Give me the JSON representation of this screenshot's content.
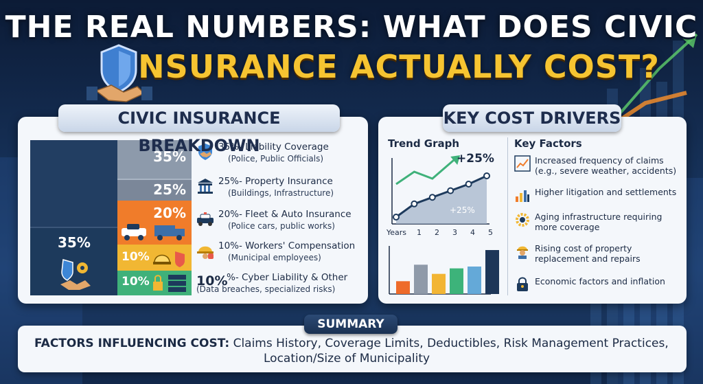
{
  "title": {
    "line1": "THE REAL NUMBERS: WHAT DOES CIVIC",
    "line2": "INSURANCE ACTUALLY COST?"
  },
  "breakdown": {
    "heading": "CIVIC INSURANCE BREAKDOWN",
    "big_pct": "35%",
    "cells": [
      {
        "pct": "35%",
        "color": "#8d9aab"
      },
      {
        "pct": "25%",
        "color": "#7b8799"
      },
      {
        "pct": "20%",
        "color": "#f07c2a"
      },
      {
        "pct": "10%",
        "color": "#f1b733"
      },
      {
        "pct": "10%",
        "color": "#3fb17a"
      }
    ],
    "legend": [
      {
        "main": "35%- Liability Coverage",
        "sub": "(Police, Public Officials)",
        "icon": "handshake-icon"
      },
      {
        "main": "25%- Property Insurance",
        "sub": "(Buildings, Infrastructure)",
        "icon": "building-icon"
      },
      {
        "main": "20%- Fleet & Auto Insurance",
        "sub": "(Police cars, public works)",
        "icon": "police-car-icon"
      },
      {
        "main": "10%- Workers' Compensation",
        "sub": "(Municipal employees)",
        "icon": "hard-hat-icon"
      },
      {
        "main": "%- Cyber Liability & Other",
        "sub": "(Data breaches, specialized risks)",
        "icon": "lock-icon",
        "big": "10%"
      }
    ]
  },
  "drivers": {
    "heading": "KEY COST DRIVERS",
    "trend_title": "Trend Graph",
    "trend_increase": "+25%",
    "trend_inner_label": "+25%",
    "x_axis_title": "Years",
    "x_ticks": [
      "1",
      "2",
      "3",
      "4",
      "5"
    ],
    "factors_title": "Key Factors",
    "factors": [
      {
        "text": "Increased frequency of claims (e.g., severe weather, accidents)",
        "icon": "trend-up-icon"
      },
      {
        "text": "Higher litigation and settlements",
        "icon": "bar-chart-icon"
      },
      {
        "text": "Aging infrastructure requiring more coverage",
        "icon": "gear-icon"
      },
      {
        "text": "Rising cost of property replacement and repairs",
        "icon": "worker-icon"
      },
      {
        "text": "Economic factors and inflation",
        "icon": "lock-icon"
      }
    ]
  },
  "chart_data": {
    "type": "line",
    "x": [
      0,
      1,
      2,
      3,
      4,
      5
    ],
    "values": [
      1.0,
      1.08,
      1.12,
      1.16,
      1.2,
      1.25
    ],
    "xlabel": "Years",
    "bar_values": [
      0.35,
      0.8,
      0.55,
      0.7,
      0.75,
      1.2
    ],
    "bar_colors": [
      "#ee6b2a",
      "#8f9aa9",
      "#f2b534",
      "#3db37a",
      "#64a9d8",
      "#1d3658"
    ]
  },
  "summary": {
    "tab": "SUMMARY",
    "label": "FACTORS INFLUENCING COST:",
    "text1": "Claims History, Coverage Limits, Deductibles, Risk Management Practices,",
    "text2": "Location/Size of Municipality"
  }
}
